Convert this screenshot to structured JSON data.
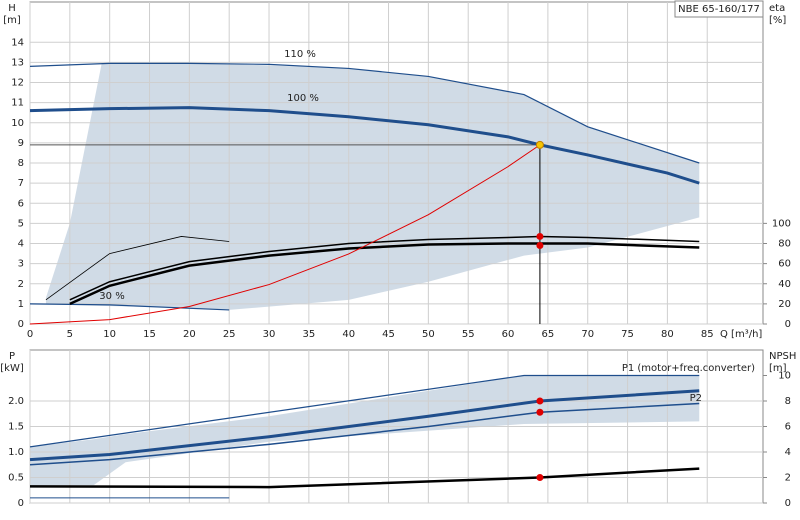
{
  "chart_data": [
    {
      "type": "line",
      "title": "NBE 65-160/177",
      "xlabel": "Q [m³/h]",
      "ylabel": "H",
      "yunit": "[m]",
      "y2label": "eta",
      "y2unit": "[%]",
      "xlim": [
        0,
        92
      ],
      "xticks": [
        0,
        5,
        10,
        15,
        20,
        25,
        30,
        35,
        40,
        45,
        50,
        55,
        60,
        65,
        70,
        75,
        80,
        85
      ],
      "ylim": [
        0,
        16
      ],
      "yticks": [
        0,
        1,
        2,
        3,
        4,
        5,
        6,
        7,
        8,
        9,
        10,
        11,
        12,
        13,
        14
      ],
      "y2lim": [
        0,
        320
      ],
      "y2ticks": [
        0,
        20,
        40,
        60,
        80,
        100
      ],
      "grid": true,
      "envelope": {
        "color": "#c8d5e2",
        "x": [
          2,
          5,
          9,
          15,
          25,
          40,
          50,
          62,
          70,
          84
        ],
        "upper": [
          1.3,
          5,
          12.95,
          12.95,
          12.92,
          12.7,
          12.3,
          11.4,
          9.8,
          8
        ],
        "lower": [
          1,
          0.95,
          0.9,
          0.85,
          0.7,
          1.2,
          2.1,
          3.4,
          3.8,
          5.3
        ]
      },
      "series": [
        {
          "label": "110 %",
          "color": "#1f4e8c",
          "width": 1.2,
          "x": [
            0,
            10,
            20,
            30,
            40,
            50,
            62,
            70,
            84
          ],
          "values": [
            12.8,
            12.95,
            12.95,
            12.9,
            12.7,
            12.3,
            11.4,
            9.8,
            8
          ]
        },
        {
          "label": "100 %",
          "color": "#1f4e8c",
          "width": 3,
          "x": [
            0,
            10,
            20,
            30,
            40,
            50,
            60,
            64,
            70,
            80,
            84
          ],
          "values": [
            10.6,
            10.7,
            10.75,
            10.6,
            10.3,
            9.9,
            9.3,
            8.9,
            8.4,
            7.5,
            7
          ]
        },
        {
          "label": "30 %",
          "color": "#1f4e8c",
          "width": 1.2,
          "x": [
            0,
            10,
            25
          ],
          "values": [
            1,
            0.95,
            0.7
          ]
        },
        {
          "color": "#000",
          "width": 2.5,
          "axis": "y2",
          "x": [
            5,
            10,
            20,
            30,
            40,
            50,
            60,
            64,
            70,
            84
          ],
          "values": [
            20,
            38,
            58,
            68,
            75,
            79,
            80,
            80,
            80,
            76
          ]
        },
        {
          "color": "#000",
          "width": 1.5,
          "axis": "y2",
          "x": [
            5,
            10,
            20,
            30,
            40,
            50,
            60,
            64,
            70,
            84
          ],
          "values": [
            24,
            42,
            62,
            72,
            80,
            84,
            86,
            87,
            86,
            82
          ]
        },
        {
          "color": "#000",
          "width": 0.8,
          "axis": "y2",
          "x": [
            2,
            10,
            19,
            25
          ],
          "values": [
            24,
            70,
            87,
            82
          ]
        },
        {
          "color": "#e00000",
          "width": 1,
          "x": [
            0,
            10,
            20,
            30,
            40,
            50,
            60,
            64
          ],
          "values": [
            0,
            0.22,
            0.87,
            1.96,
            3.48,
            5.43,
            7.82,
            8.9
          ]
        }
      ],
      "points": [
        {
          "x": 64,
          "y": 8.9,
          "color": "#f5c400"
        },
        {
          "x": 64,
          "y": 87,
          "axis": "y2",
          "color": "#e00000"
        },
        {
          "x": 64,
          "y": 78,
          "axis": "y2",
          "color": "#e00000"
        }
      ]
    },
    {
      "type": "line",
      "ylabel": "P",
      "yunit": "[kW]",
      "y2label": "NPSH",
      "y2unit": "[m]",
      "xlim": [
        0,
        92
      ],
      "xticks": [
        0,
        5,
        10,
        15,
        20,
        25,
        30,
        35,
        40,
        45,
        50,
        55,
        60,
        65,
        70,
        75,
        80,
        85
      ],
      "ylim": [
        0,
        3
      ],
      "yticks": [
        0,
        0.5,
        {
          "value": 1,
          "label": "1.0"
        },
        1.5,
        {
          "value": 2,
          "label": "2.0"
        }
      ],
      "y2lim": [
        0,
        12
      ],
      "y2ticks": [
        0,
        2,
        4,
        6,
        8,
        10
      ],
      "grid": true,
      "envelope": {
        "color": "#c8d5e2",
        "x": [
          0,
          8,
          12,
          30,
          62,
          84
        ],
        "upper": [
          1.1,
          1.25,
          1.35,
          1.7,
          2.5,
          2.5
        ],
        "lower": [
          0.35,
          0.35,
          0.8,
          1.2,
          1.55,
          1.6
        ]
      },
      "series": [
        {
          "label": "P1 (motor+freq.converter)",
          "color": "#1f4e8c",
          "width": 1.2,
          "x": [
            0,
            62,
            84
          ],
          "values": [
            1.1,
            2.5,
            2.5
          ]
        },
        {
          "color": "#1f4e8c",
          "width": 3,
          "x": [
            0,
            10,
            30,
            50,
            64,
            84
          ],
          "values": [
            0.85,
            0.95,
            1.3,
            1.7,
            2,
            2.2
          ]
        },
        {
          "label": "P2",
          "color": "#1f4e8c",
          "width": 1.5,
          "x": [
            0,
            10,
            30,
            50,
            64,
            84
          ],
          "values": [
            0.75,
            0.85,
            1.15,
            1.5,
            1.78,
            1.95
          ]
        },
        {
          "color": "#1f4e8c",
          "width": 1,
          "x": [
            0,
            25
          ],
          "values": [
            0.1,
            0.1
          ]
        },
        {
          "color": "#000",
          "width": 2.5,
          "axis": "y2",
          "x": [
            0,
            30,
            64,
            84
          ],
          "values": [
            1.3,
            1.25,
            2,
            2.7
          ]
        }
      ],
      "points": [
        {
          "x": 64,
          "y": 2,
          "color": "#e00000"
        },
        {
          "x": 64,
          "y": 1.78,
          "color": "#e00000"
        },
        {
          "x": 64,
          "y": 2,
          "axis": "y2",
          "color": "#e00000"
        }
      ]
    }
  ]
}
